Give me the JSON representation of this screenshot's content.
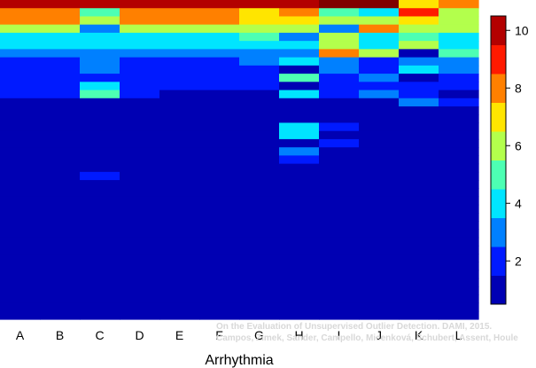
{
  "chart_data": {
    "type": "heatmap",
    "title": "",
    "xlabel": "Arrhythmia",
    "ylabel": "",
    "categories": [
      "A",
      "B",
      "C",
      "D",
      "E",
      "F",
      "G",
      "H",
      "I",
      "J",
      "K",
      "L"
    ],
    "row_count": 39,
    "colorbar": {
      "ticks": [
        2,
        4,
        6,
        8,
        10
      ],
      "min": 0.5,
      "max": 10.5,
      "palette": "jet"
    },
    "columns": [
      {
        "name": "A",
        "values": [
          10,
          8,
          8,
          6,
          4,
          4,
          3,
          2,
          2,
          2,
          2,
          2,
          1,
          1,
          1,
          1,
          1,
          1,
          1,
          1,
          1,
          1,
          1,
          1,
          1,
          1,
          1,
          1,
          1,
          1,
          1,
          1,
          1,
          1,
          1,
          1,
          1,
          1,
          1
        ]
      },
      {
        "name": "B",
        "values": [
          10,
          8,
          8,
          6,
          4,
          4,
          3,
          2,
          2,
          2,
          2,
          2,
          1,
          1,
          1,
          1,
          1,
          1,
          1,
          1,
          1,
          1,
          1,
          1,
          1,
          1,
          1,
          1,
          1,
          1,
          1,
          1,
          1,
          1,
          1,
          1,
          1,
          1,
          1
        ]
      },
      {
        "name": "C",
        "values": [
          10,
          5,
          6,
          3,
          4,
          4,
          3,
          3,
          3,
          2,
          4,
          5,
          1,
          1,
          1,
          1,
          1,
          1,
          1,
          1,
          1,
          2,
          1,
          1,
          1,
          1,
          1,
          1,
          1,
          1,
          1,
          1,
          1,
          1,
          1,
          1,
          1,
          1,
          1
        ]
      },
      {
        "name": "D",
        "values": [
          10,
          8,
          8,
          6,
          4,
          4,
          3,
          2,
          2,
          2,
          2,
          2,
          1,
          1,
          1,
          1,
          1,
          1,
          1,
          1,
          1,
          1,
          1,
          1,
          1,
          1,
          1,
          1,
          1,
          1,
          1,
          1,
          1,
          1,
          1,
          1,
          1,
          1,
          1
        ]
      },
      {
        "name": "E",
        "values": [
          10,
          8,
          8,
          6,
          4,
          4,
          3,
          2,
          2,
          2,
          2,
          1,
          1,
          1,
          1,
          1,
          1,
          1,
          1,
          1,
          1,
          1,
          1,
          1,
          1,
          1,
          1,
          1,
          1,
          1,
          1,
          1,
          1,
          1,
          1,
          1,
          1,
          1,
          1
        ]
      },
      {
        "name": "F",
        "values": [
          10,
          8,
          8,
          6,
          4,
          4,
          3,
          2,
          2,
          2,
          2,
          1,
          1,
          1,
          1,
          1,
          1,
          1,
          1,
          1,
          1,
          1,
          1,
          1,
          1,
          1,
          1,
          1,
          1,
          1,
          1,
          1,
          1,
          1,
          1,
          1,
          1,
          1,
          1
        ]
      },
      {
        "name": "G",
        "values": [
          10,
          7,
          7,
          6,
          5,
          4,
          3,
          3,
          2,
          2,
          2,
          1,
          1,
          1,
          1,
          1,
          1,
          1,
          1,
          1,
          1,
          1,
          1,
          1,
          1,
          1,
          1,
          1,
          1,
          1,
          1,
          1,
          1,
          1,
          1,
          1,
          1,
          1,
          1
        ]
      },
      {
        "name": "H",
        "values": [
          10,
          8,
          7,
          6,
          3,
          4,
          3,
          4,
          1,
          5,
          1,
          4,
          1,
          1,
          1,
          4,
          4,
          1,
          3,
          2,
          1,
          1,
          1,
          1,
          1,
          1,
          1,
          1,
          1,
          1,
          1,
          1,
          1,
          1,
          1,
          1,
          1,
          1,
          1
        ]
      },
      {
        "name": "I",
        "values": [
          11,
          5,
          6,
          3,
          6,
          6,
          8,
          3,
          3,
          2,
          2,
          2,
          1,
          1,
          1,
          2,
          1,
          2,
          1,
          1,
          1,
          1,
          1,
          1,
          1,
          1,
          1,
          1,
          1,
          1,
          1,
          1,
          1,
          1,
          1,
          1,
          1,
          1,
          1
        ]
      },
      {
        "name": "J",
        "values": [
          11,
          4,
          6,
          8,
          4,
          4,
          6,
          2,
          2,
          3,
          2,
          3,
          1,
          1,
          1,
          1,
          1,
          1,
          1,
          1,
          1,
          1,
          1,
          1,
          1,
          1,
          1,
          1,
          1,
          1,
          1,
          1,
          1,
          1,
          1,
          1,
          1,
          1,
          1
        ]
      },
      {
        "name": "K",
        "values": [
          7,
          9,
          7,
          6,
          5,
          6,
          1,
          3,
          4,
          1,
          2,
          2,
          3,
          1,
          1,
          1,
          1,
          1,
          1,
          1,
          1,
          1,
          1,
          1,
          1,
          1,
          1,
          1,
          1,
          1,
          1,
          1,
          1,
          1,
          1,
          1,
          1,
          1,
          1
        ]
      },
      {
        "name": "L",
        "values": [
          8,
          6,
          6,
          6,
          4,
          4,
          5,
          3,
          3,
          2,
          2,
          1,
          2,
          1,
          1,
          1,
          1,
          1,
          1,
          1,
          1,
          1,
          1,
          1,
          1,
          1,
          1,
          1,
          1,
          1,
          1,
          1,
          1,
          1,
          1,
          1,
          1,
          1,
          1
        ]
      }
    ]
  },
  "credit": {
    "line1": "On the Evaluation of Unsupervised Outlier Detection. DAMI, 2015.",
    "line2": "Campos, Zimek, Sander, Campello, Micenková, Schubert, Assent, Houle"
  }
}
